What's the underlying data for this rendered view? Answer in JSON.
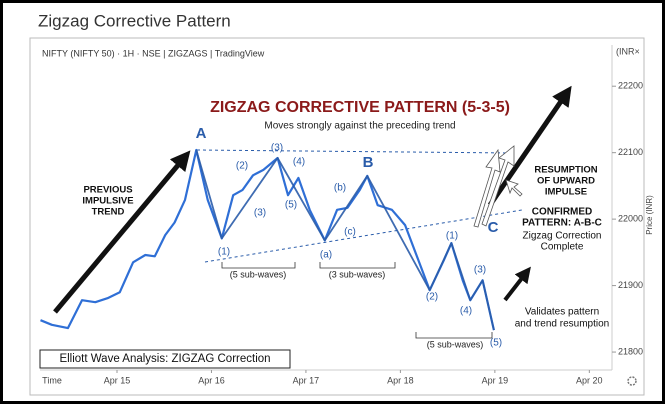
{
  "chart_data": {
    "type": "line",
    "title": "Zigzag Corrective Pattern",
    "subtitle": "NIFTY (NIFTY 50) · 1H · NSE | ZIGZAGS | TradingView",
    "y_unit": "(INR×",
    "y_label": "Price (INR)",
    "x_label": "Time",
    "xlim": [
      -0.815,
      5.24
    ],
    "xticks": [
      {
        "value": 0,
        "label": "Apr 15"
      },
      {
        "value": 1,
        "label": "Apr 16"
      },
      {
        "value": 2,
        "label": "Apr 17"
      },
      {
        "value": 3,
        "label": "Apr 18"
      },
      {
        "value": 4,
        "label": "Apr 19"
      },
      {
        "value": 5,
        "label": "Apr 20"
      }
    ],
    "ylim": [
      21773,
      22262
    ],
    "yticks": [
      21800,
      21900,
      22000,
      22100,
      22200
    ],
    "series": [
      {
        "color": "#2f6fd6",
        "x": [
          -0.81,
          -0.69,
          -0.52,
          -0.37,
          -0.23,
          -0.1,
          0.03,
          0.17,
          0.3,
          0.4,
          0.51,
          0.61,
          0.72,
          0.84,
          0.96,
          1.11,
          1.23,
          1.33,
          1.44,
          1.55,
          1.7,
          1.81,
          1.92,
          2.04,
          2.2,
          2.33,
          2.44,
          2.57,
          2.65,
          2.76,
          2.91,
          3.05,
          3.21,
          3.31,
          3.46,
          3.54,
          3.66,
          3.74,
          3.87,
          3.99
        ],
        "values": [
          21848,
          21841,
          21836,
          21878,
          21875,
          21881,
          21890,
          21935,
          21946,
          21944,
          21976,
          21995,
          22029,
          22104,
          22029,
          21971,
          22036,
          22044,
          22066,
          22074,
          22092,
          22036,
          22062,
          22014,
          21968,
          22014,
          22017,
          22044,
          22065,
          22021,
          22014,
          21991,
          21931,
          21893,
          21938,
          21964,
          21908,
          21878,
          21908,
          21833
        ]
      },
      {
        "color": "#2a5caa",
        "x": [
          0.84,
          1.11,
          1.7,
          2.2,
          2.65,
          3.31,
          3.54,
          3.74,
          3.87,
          3.99
        ],
        "values": [
          22104,
          21971,
          22092,
          21968,
          22065,
          21893,
          21964,
          21878,
          21908,
          21833
        ]
      }
    ],
    "wave_labels": [
      "A",
      "B",
      "C",
      "(1)",
      "(2)",
      "(3)",
      "(4)",
      "(3)",
      "(5)",
      "(a)",
      "(b)",
      "(c)",
      "(1)",
      "(2)",
      "(3)",
      "(4)",
      "(5)"
    ],
    "annotations": [
      "ZIGZAG CORRECTIVE PATTERN (5-3-5)",
      "Moves strongly against the preceding trend",
      [
        "PREVIOUS",
        "IMPULSIVE",
        "TREND"
      ],
      [
        "RESUMPTION",
        "OF UPWARD",
        "IMPULSE"
      ],
      [
        "CONFIRMED",
        "PATTERN: A-B-C"
      ],
      [
        "Zigzag Correction",
        "Complete"
      ],
      "(5 sub-waves)",
      "(3 sub-waves)",
      "(5 sub-waves)",
      [
        "Validates pattern",
        "and trend resumption"
      ],
      "Elliott Wave Analysis: ZIGZAG Correction"
    ]
  }
}
